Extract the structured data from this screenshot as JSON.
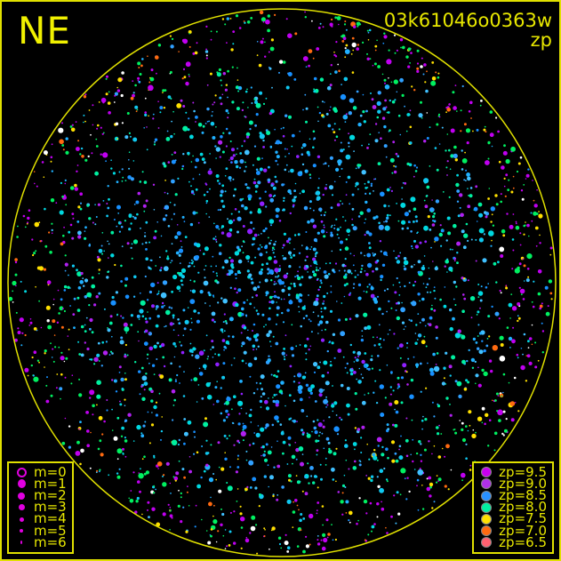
{
  "direction_label": "NE",
  "image_id": "03k61046o0363w",
  "color_mode": "zp",
  "border_color": "#e0e000",
  "magnitude_legend": [
    {
      "label": "m=0",
      "symbol": "open-circle"
    },
    {
      "label": "m=1"
    },
    {
      "label": "m=2"
    },
    {
      "label": "m=3"
    },
    {
      "label": "m=4"
    },
    {
      "label": "m=5"
    },
    {
      "label": "m=6"
    }
  ],
  "zp_legend": [
    {
      "label": "zp=9.5",
      "color": "#c800f0"
    },
    {
      "label": "zp=9.0",
      "color": "#b030e8"
    },
    {
      "label": "zp=8.5",
      "color": "#2890ff"
    },
    {
      "label": "zp=8.0",
      "color": "#00f0a0"
    },
    {
      "label": "zp=7.5",
      "color": "#ffe000"
    },
    {
      "label": "zp=7.0",
      "color": "#ff6a10"
    },
    {
      "label": "zp=6.5",
      "color": "#ff6070"
    }
  ]
}
